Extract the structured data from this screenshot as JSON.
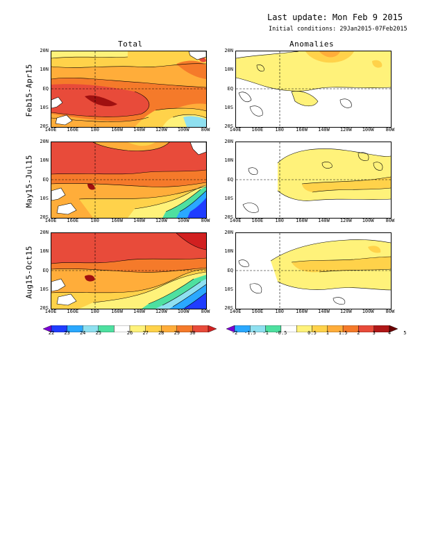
{
  "header": {
    "last_update": "Last update: Mon Feb 9 2015",
    "initial_conditions": "Initial conditions: 29Jan2015-07Feb2015"
  },
  "columns": [
    "Total",
    "Anomalies"
  ],
  "rows": [
    "Feb15-Apr15",
    "May15-Jul15",
    "Aug15-Oct15"
  ],
  "y_ticks": [
    "20N",
    "10N",
    "EQ",
    "10S",
    "20S"
  ],
  "x_ticks": [
    "140E",
    "160E",
    "180",
    "160W",
    "140W",
    "120W",
    "100W",
    "80W"
  ],
  "total_colorbar": {
    "labels": [
      "22",
      "23",
      "24",
      "25",
      "26",
      "27",
      "28",
      "29",
      "30"
    ],
    "colors": [
      "#7a00d6",
      "#1f3dff",
      "#2aa8ff",
      "#8fe0f0",
      "#4ee0a0",
      "#ffffff",
      "#fff27a",
      "#ffd24a",
      "#ffad3a",
      "#f57a2a",
      "#e84b3a",
      "#d12020"
    ]
  },
  "anomaly_colorbar": {
    "labels": [
      "-2",
      "-1.5",
      "-1",
      "-0.5",
      "0.5",
      "1",
      "1.5",
      "2",
      "3",
      "4",
      "5"
    ],
    "colors": [
      "#7a00d6",
      "#2aa8ff",
      "#8fe0f0",
      "#4ee0a0",
      "#ffffff",
      "#fff27a",
      "#ffd24a",
      "#ffad3a",
      "#f57a2a",
      "#e84b3a",
      "#b01818",
      "#6a0000"
    ]
  }
}
